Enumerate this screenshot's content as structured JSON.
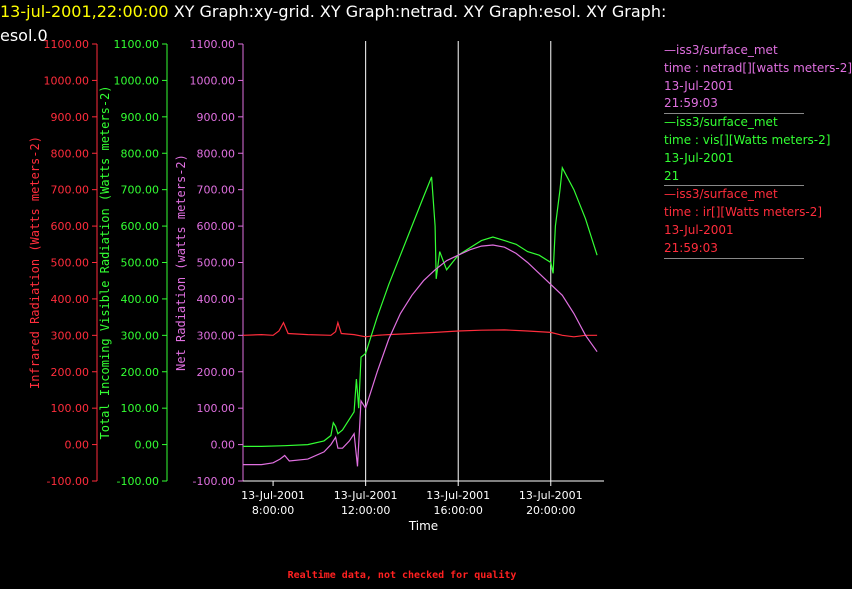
{
  "header": {
    "timestamp": "13-jul-2001,22:00:00",
    "title_rest": "  XY Graph:xy-grid.  XY Graph:netrad.  XY Graph:esol.  XY Graph:",
    "title_line2": "esol.0"
  },
  "footer": {
    "note": "Realtime data, not checked for quality"
  },
  "colors": {
    "ir": "#ff2d3c",
    "vis": "#33ff33",
    "net": "#e070e0",
    "grid": "#ffffff",
    "axis_text_ir": "#ff2d3c",
    "axis_text_vis": "#33ff33",
    "axis_text_net": "#e070e0"
  },
  "legend": [
    {
      "source": "—iss3/surface_met",
      "field": "time : netrad[][watts meters-2]",
      "date": "13-Jul-2001",
      "time": "21:59:03",
      "color": "#e070e0"
    },
    {
      "source": "—iss3/surface_met",
      "field": "time : vis[][Watts meters-2]",
      "date": "13-Jul-2001",
      "time": "21",
      "color": "#33ff33"
    },
    {
      "source": "—iss3/surface_met",
      "field": "time : ir[][Watts meters-2]",
      "date": "13-Jul-2001",
      "time": "21:59:03",
      "color": "#ff2d3c"
    }
  ],
  "chart_data": {
    "type": "line",
    "xlabel": "Time",
    "x_unit": "hours on 13-Jul-2001",
    "xlim": [
      6.7,
      22.3
    ],
    "x_ticks": [
      {
        "value": 8,
        "date": "13-Jul-2001",
        "time": "8:00:00"
      },
      {
        "value": 12,
        "date": "13-Jul-2001",
        "time": "12:00:00"
      },
      {
        "value": 16,
        "date": "13-Jul-2001",
        "time": "16:00:00"
      },
      {
        "value": 20,
        "date": "13-Jul-2001",
        "time": "20:00:00"
      }
    ],
    "vertical_gridlines": [
      12,
      16,
      20
    ],
    "axes": [
      {
        "id": "ir",
        "label": "Infrared Radiation (Watts meters-2)",
        "ylim": [
          -100,
          1100
        ],
        "ticks": [
          "-100.00",
          "0.00",
          "100.00",
          "200.00",
          "300.00",
          "400.00",
          "500.00",
          "600.00",
          "700.00",
          "800.00",
          "900.00",
          "1000.00",
          "1100.00"
        ]
      },
      {
        "id": "vis",
        "label": "Total Incoming Visible Radiation (Watts meters-2)",
        "ylim": [
          -100,
          1100
        ],
        "ticks": [
          "-100.00",
          "0.00",
          "100.00",
          "200.00",
          "300.00",
          "400.00",
          "500.00",
          "600.00",
          "700.00",
          "800.00",
          "900.00",
          "1000.00",
          "1100.00"
        ]
      },
      {
        "id": "net",
        "label": "Net Radiation (watts meters-2)",
        "ylim": [
          -100,
          1100
        ],
        "ticks": [
          "-100.00",
          "0.00",
          "100.00",
          "200.00",
          "300.00",
          "400.00",
          "500.00",
          "600.00",
          "700.00",
          "800.00",
          "900.00",
          "1000.00",
          "1100.00"
        ]
      }
    ],
    "series": [
      {
        "id": "ir",
        "name": "ir",
        "axis": "ir",
        "points": [
          [
            6.7,
            300
          ],
          [
            7.5,
            302
          ],
          [
            8.0,
            300
          ],
          [
            8.25,
            312
          ],
          [
            8.45,
            335
          ],
          [
            8.65,
            305
          ],
          [
            9.5,
            302
          ],
          [
            10.5,
            300
          ],
          [
            10.7,
            310
          ],
          [
            10.8,
            335
          ],
          [
            10.95,
            305
          ],
          [
            11.5,
            302
          ],
          [
            12.0,
            296
          ],
          [
            12.5,
            300
          ],
          [
            13.0,
            302
          ],
          [
            14.0,
            305
          ],
          [
            15.0,
            308
          ],
          [
            16.0,
            312
          ],
          [
            17.0,
            314
          ],
          [
            18.0,
            315
          ],
          [
            19.0,
            312
          ],
          [
            20.0,
            308
          ],
          [
            20.5,
            300
          ],
          [
            21.0,
            296
          ],
          [
            21.5,
            300
          ],
          [
            22.0,
            300
          ]
        ]
      },
      {
        "id": "vis",
        "name": "vis",
        "axis": "vis",
        "points": [
          [
            6.7,
            -5
          ],
          [
            7.5,
            -5
          ],
          [
            8.5,
            -3
          ],
          [
            9.5,
            0
          ],
          [
            10.2,
            10
          ],
          [
            10.5,
            25
          ],
          [
            10.6,
            60
          ],
          [
            10.7,
            50
          ],
          [
            10.8,
            30
          ],
          [
            11.0,
            40
          ],
          [
            11.5,
            90
          ],
          [
            11.6,
            180
          ],
          [
            11.7,
            100
          ],
          [
            11.8,
            240
          ],
          [
            12.0,
            250
          ],
          [
            12.5,
            350
          ],
          [
            13.0,
            440
          ],
          [
            13.5,
            520
          ],
          [
            14.0,
            600
          ],
          [
            14.5,
            680
          ],
          [
            14.85,
            735
          ],
          [
            15.0,
            600
          ],
          [
            15.05,
            455
          ],
          [
            15.2,
            530
          ],
          [
            15.5,
            480
          ],
          [
            16.0,
            520
          ],
          [
            16.5,
            540
          ],
          [
            17.0,
            560
          ],
          [
            17.5,
            570
          ],
          [
            18.0,
            560
          ],
          [
            18.5,
            550
          ],
          [
            19.0,
            530
          ],
          [
            19.5,
            520
          ],
          [
            20.0,
            500
          ],
          [
            20.1,
            470
          ],
          [
            20.2,
            600
          ],
          [
            20.4,
            700
          ],
          [
            20.5,
            760
          ],
          [
            21.0,
            700
          ],
          [
            21.5,
            620
          ],
          [
            22.0,
            520
          ]
        ]
      },
      {
        "id": "net",
        "name": "netrad",
        "axis": "net",
        "points": [
          [
            6.7,
            -55
          ],
          [
            7.5,
            -55
          ],
          [
            8.0,
            -50
          ],
          [
            8.3,
            -40
          ],
          [
            8.5,
            -30
          ],
          [
            8.7,
            -45
          ],
          [
            9.5,
            -40
          ],
          [
            10.2,
            -20
          ],
          [
            10.5,
            0
          ],
          [
            10.7,
            20
          ],
          [
            10.8,
            -10
          ],
          [
            11.0,
            -10
          ],
          [
            11.3,
            10
          ],
          [
            11.5,
            30
          ],
          [
            11.65,
            -60
          ],
          [
            11.8,
            120
          ],
          [
            12.0,
            100
          ],
          [
            12.5,
            200
          ],
          [
            13.0,
            290
          ],
          [
            13.5,
            360
          ],
          [
            14.0,
            410
          ],
          [
            14.5,
            450
          ],
          [
            15.0,
            480
          ],
          [
            15.5,
            505
          ],
          [
            16.0,
            520
          ],
          [
            16.5,
            535
          ],
          [
            17.0,
            545
          ],
          [
            17.5,
            548
          ],
          [
            18.0,
            542
          ],
          [
            18.5,
            525
          ],
          [
            19.0,
            500
          ],
          [
            19.5,
            470
          ],
          [
            20.0,
            440
          ],
          [
            20.5,
            410
          ],
          [
            21.0,
            360
          ],
          [
            21.5,
            300
          ],
          [
            22.0,
            255
          ]
        ]
      }
    ]
  }
}
